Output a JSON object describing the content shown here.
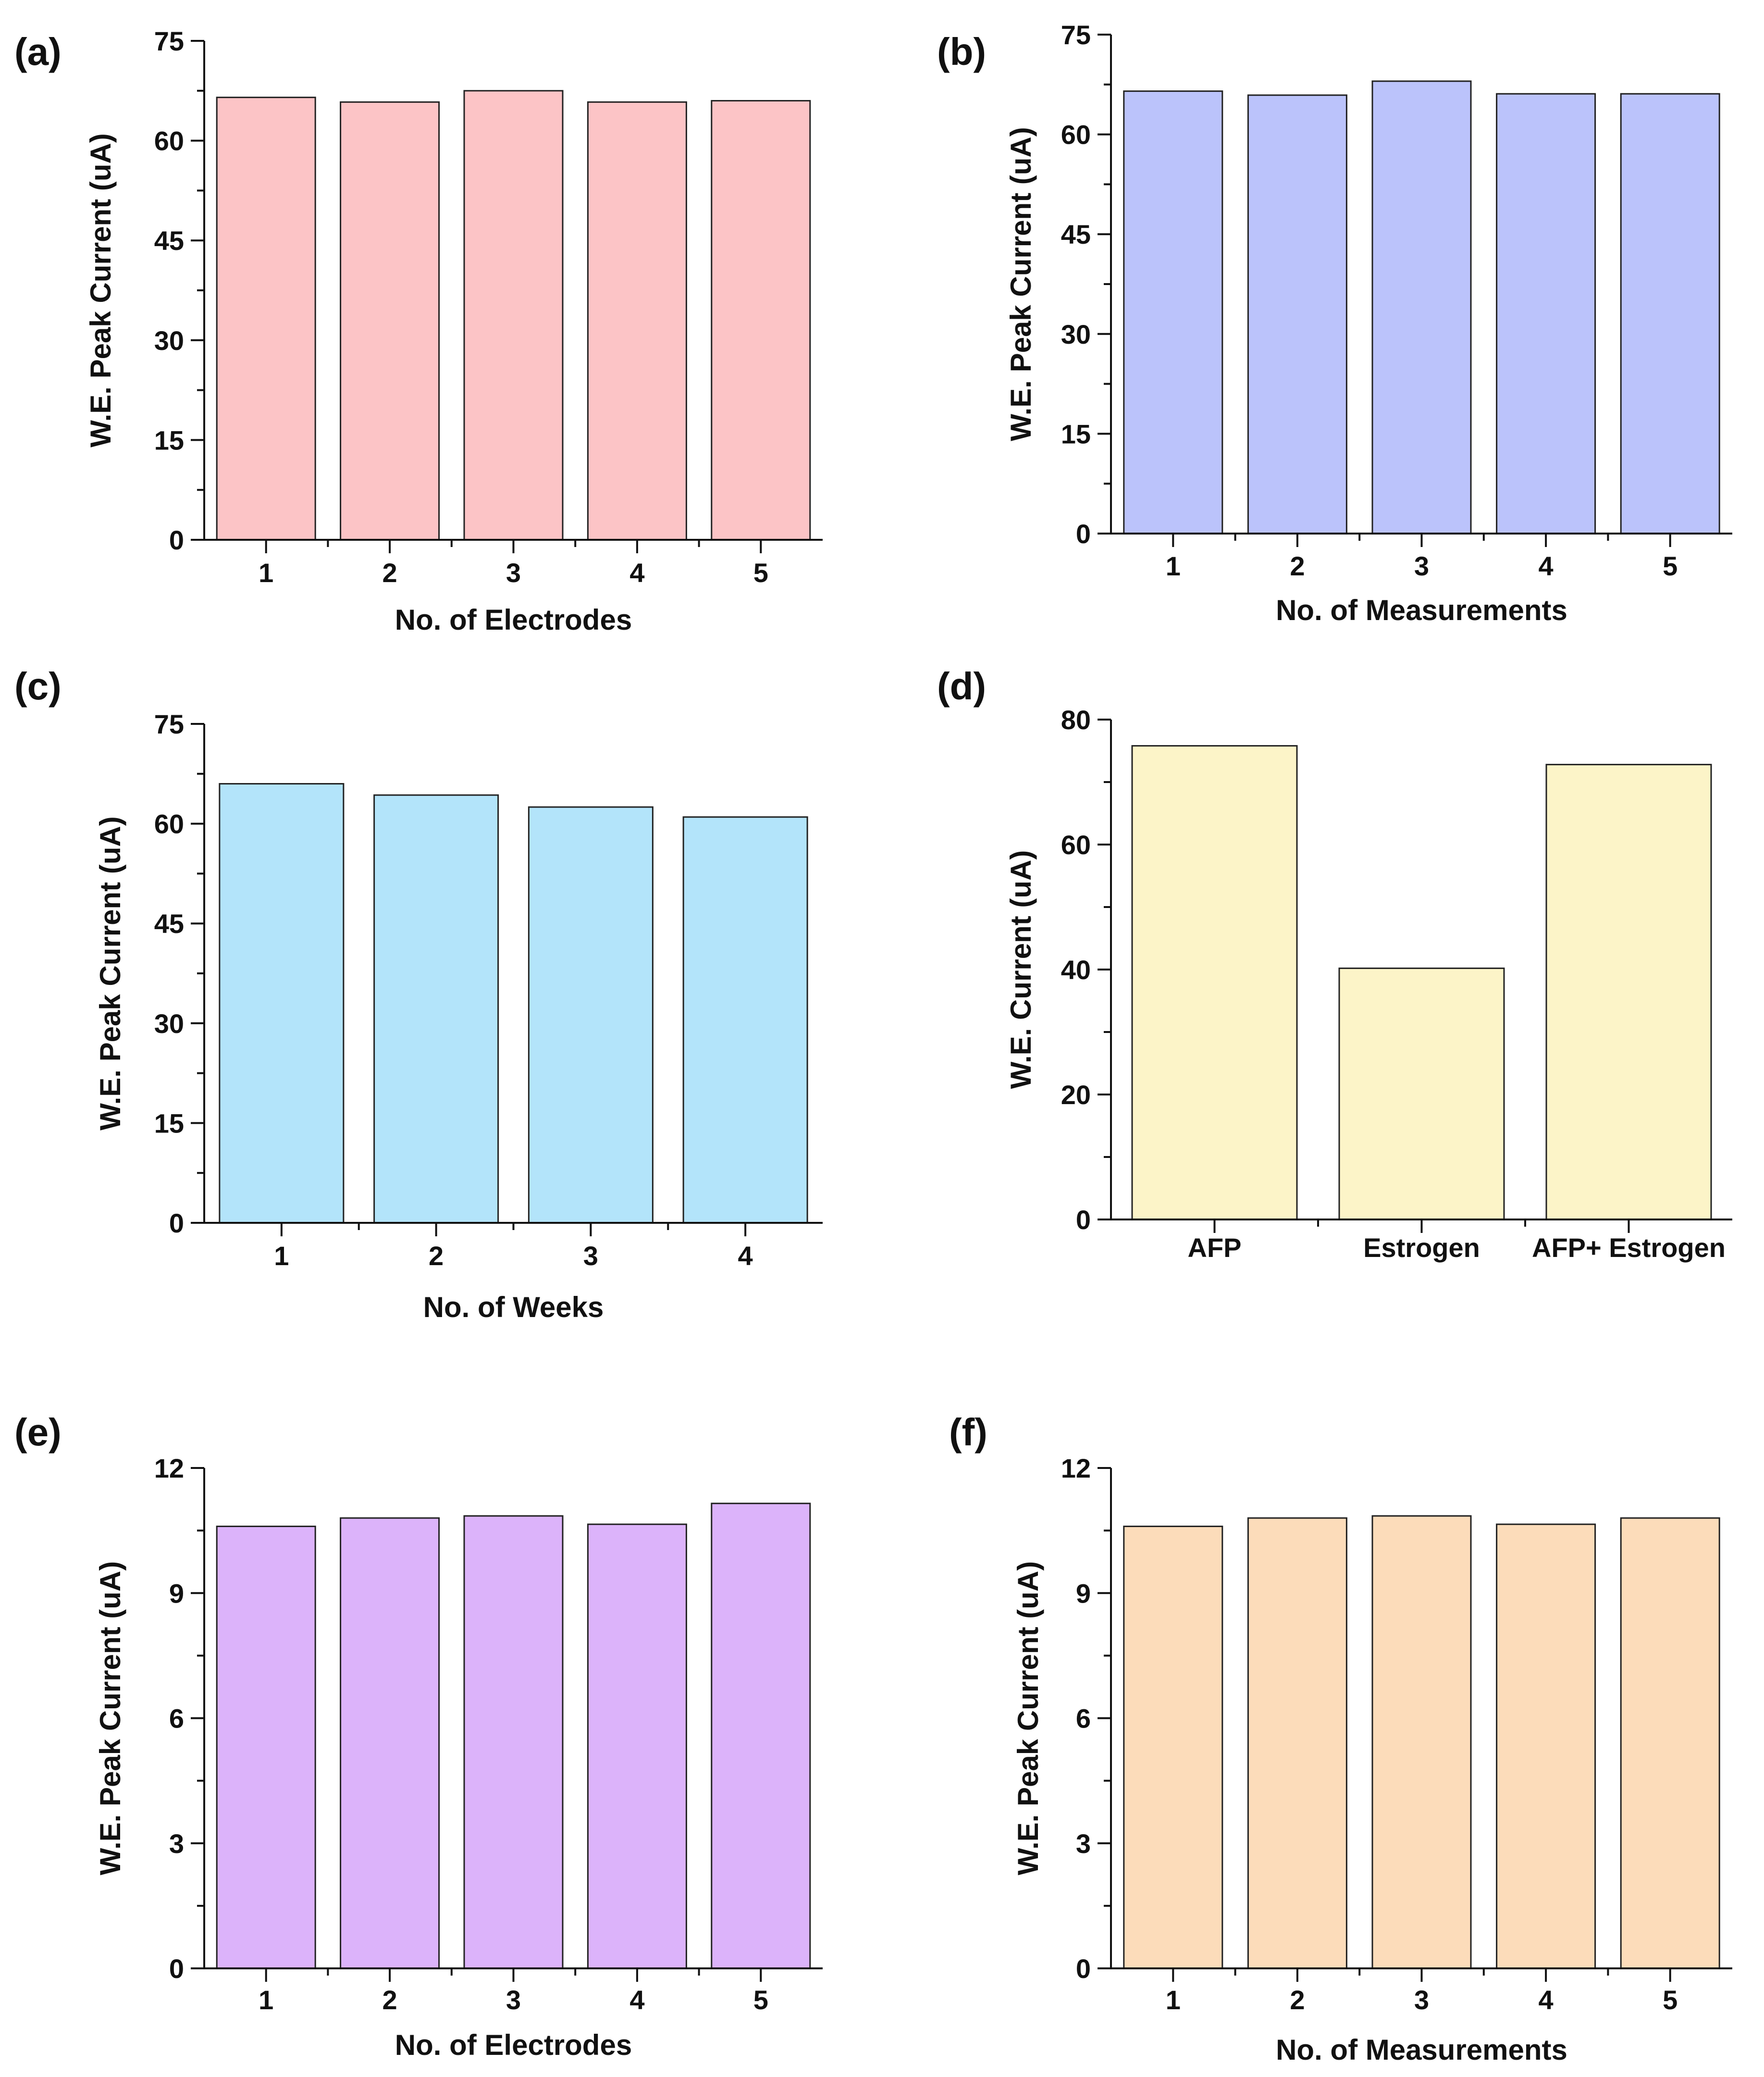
{
  "chart_data": [
    {
      "panel": "(a)",
      "type": "bar",
      "categories": [
        "1",
        "2",
        "3",
        "4",
        "5"
      ],
      "values": [
        66.5,
        65.8,
        67.5,
        65.8,
        66.0
      ],
      "xlabel": "No. of Electrodes",
      "ylabel": "W.E. Peak Current (uA)",
      "ylim": [
        0,
        75
      ],
      "yticks": [
        0,
        15,
        30,
        45,
        60,
        75
      ],
      "bar_color": "#fcc4c6"
    },
    {
      "panel": "(b)",
      "type": "bar",
      "categories": [
        "1",
        "2",
        "3",
        "4",
        "5"
      ],
      "values": [
        66.5,
        65.9,
        68.0,
        66.1,
        66.1
      ],
      "xlabel": "No. of Measurements",
      "ylabel": "W.E. Peak Current (uA)",
      "ylim": [
        0,
        75
      ],
      "yticks": [
        0,
        15,
        30,
        45,
        60,
        75
      ],
      "bar_color": "#bbc3fb"
    },
    {
      "panel": "(c)",
      "type": "bar",
      "categories": [
        "1",
        "2",
        "3",
        "4"
      ],
      "values": [
        66.0,
        64.3,
        62.5,
        61.0
      ],
      "xlabel": "No. of Weeks",
      "ylabel": "W.E. Peak Current (uA)",
      "ylim": [
        0,
        75
      ],
      "yticks": [
        0,
        15,
        30,
        45,
        60,
        75
      ],
      "bar_color": "#b3e4fa"
    },
    {
      "panel": "(d)",
      "type": "bar",
      "categories": [
        "AFP",
        "Estrogen",
        "AFP+ Estrogen"
      ],
      "values": [
        75.8,
        40.2,
        72.8
      ],
      "xlabel": "",
      "ylabel": "W.E. Current (uA)",
      "ylim": [
        0,
        80
      ],
      "yticks": [
        0,
        20,
        40,
        60,
        80
      ],
      "bar_color": "#fcf4c8"
    },
    {
      "panel": "(e)",
      "type": "bar",
      "categories": [
        "1",
        "2",
        "3",
        "4",
        "5"
      ],
      "values": [
        10.6,
        10.8,
        10.85,
        10.65,
        11.15
      ],
      "xlabel": "No. of Electrodes",
      "ylabel": "W.E. Peak Current (uA)",
      "ylim": [
        0,
        12
      ],
      "yticks": [
        0,
        3,
        6,
        9,
        12
      ],
      "bar_color": "#dcb3fa"
    },
    {
      "panel": "(f)",
      "type": "bar",
      "categories": [
        "1",
        "2",
        "3",
        "4",
        "5"
      ],
      "values": [
        10.6,
        10.8,
        10.85,
        10.65,
        10.8
      ],
      "xlabel": "No. of Measurements",
      "ylabel": "W.E. Peak Current (uA)",
      "ylim": [
        0,
        12
      ],
      "yticks": [
        0,
        3,
        6,
        9,
        12
      ],
      "bar_color": "#fcdcba"
    }
  ]
}
